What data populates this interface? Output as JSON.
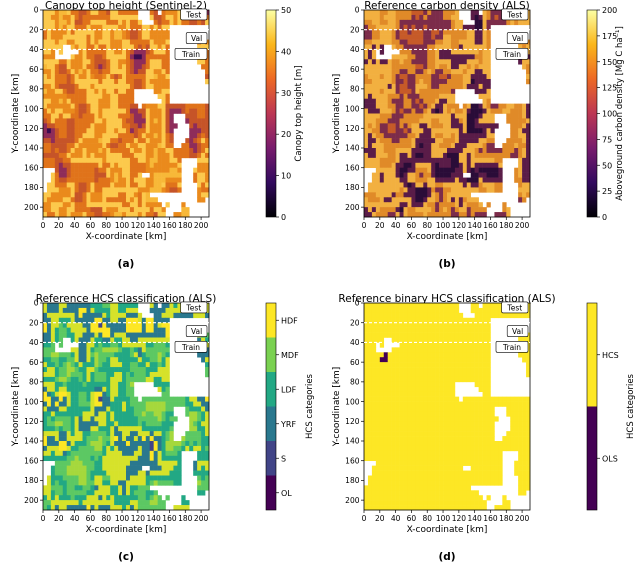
{
  "chart_data": [
    {
      "type": "heatmap",
      "letter": "(a)",
      "title": "Canopy top height (Sentinel-2)",
      "xlabel": "X-coordinate [km]",
      "ylabel": "Y-coordinate [km]",
      "xlim": [
        0,
        210
      ],
      "ylim": [
        0,
        210
      ],
      "xticks": [
        0,
        20,
        40,
        60,
        80,
        100,
        120,
        140,
        160,
        180,
        200
      ],
      "yticks": [
        0,
        20,
        40,
        60,
        80,
        100,
        120,
        140,
        160,
        180,
        200
      ],
      "split_lines_y": [
        20,
        40
      ],
      "split_labels": [
        "Test",
        "Val",
        "Train"
      ],
      "colorbar": {
        "kind": "continuous",
        "label": "Canopy top height [m]",
        "range": [
          0,
          50
        ],
        "ticks": [
          0,
          10,
          20,
          30,
          40,
          50
        ],
        "colormap": "inferno",
        "stops": [
          "#000004",
          "#320a5e",
          "#781c6d",
          "#bc3754",
          "#ed6925",
          "#fbb61a",
          "#fcffa4"
        ]
      },
      "map": {
        "palette": [
          "#f4a92a",
          "#f7b838",
          "#ea8a1c",
          "#fcc94c",
          "#e0731a",
          "#c65428",
          "#8e2c5a",
          "#3c0b51"
        ],
        "nodata": "#ffffff"
      }
    },
    {
      "type": "heatmap",
      "letter": "(b)",
      "title": "Reference carbon density (ALS)",
      "xlabel": "X-coordinate [km]",
      "ylabel": "Y-coordinate [km]",
      "xlim": [
        0,
        210
      ],
      "ylim": [
        0,
        210
      ],
      "xticks": [
        0,
        20,
        40,
        60,
        80,
        100,
        120,
        140,
        160,
        180,
        200
      ],
      "yticks": [
        0,
        20,
        40,
        60,
        80,
        100,
        120,
        140,
        160,
        180,
        200
      ],
      "split_lines_y": [
        20,
        40
      ],
      "split_labels": [
        "Test",
        "Val",
        "Train"
      ],
      "colorbar": {
        "kind": "continuous",
        "label": "Aboveground carbon density [Mg C ha⁻¹]",
        "range": [
          0,
          200
        ],
        "ticks": [
          0,
          25,
          50,
          75,
          100,
          125,
          150,
          175,
          200
        ],
        "colormap": "inferno",
        "stops": [
          "#000004",
          "#320a5e",
          "#781c6d",
          "#bc3754",
          "#ed6925",
          "#fbb61a",
          "#fcffa4"
        ]
      },
      "map": {
        "palette": [
          "#a0402e",
          "#c65a28",
          "#7c2c4a",
          "#e08a28",
          "#f2b040",
          "#5a1c48",
          "#2a0c38",
          "#b84a30"
        ],
        "nodata": "#ffffff"
      }
    },
    {
      "type": "heatmap",
      "letter": "(c)",
      "title": "Reference HCS classification (ALS)",
      "xlabel": "X-coordinate [km]",
      "ylabel": "Y-coordinate [km]",
      "xlim": [
        0,
        210
      ],
      "ylim": [
        0,
        210
      ],
      "xticks": [
        0,
        20,
        40,
        60,
        80,
        100,
        120,
        140,
        160,
        180,
        200
      ],
      "yticks": [
        0,
        20,
        40,
        60,
        80,
        100,
        120,
        140,
        160,
        180,
        200
      ],
      "split_lines_y": [
        20,
        40
      ],
      "split_labels": [
        "Test",
        "Val",
        "Train"
      ],
      "colorbar": {
        "kind": "categorical",
        "label": "HCS categories",
        "categories": [
          "OL",
          "S",
          "YRF",
          "LDF",
          "MDF",
          "HDF"
        ],
        "colors": [
          "#440154",
          "#414487",
          "#2a788e",
          "#22a884",
          "#7ad151",
          "#fde725"
        ]
      },
      "map": {
        "palette": [
          "#7ad151",
          "#a5d83c",
          "#5cc863",
          "#22a884",
          "#d6e22a",
          "#2a788e",
          "#fde725",
          "#414487"
        ],
        "nodata": "#ffffff"
      }
    },
    {
      "type": "heatmap",
      "letter": "(d)",
      "title": "Reference binary HCS classification (ALS)",
      "xlabel": "X-coordinate [km]",
      "ylabel": "Y-coordinate [km]",
      "xlim": [
        0,
        210
      ],
      "ylim": [
        0,
        210
      ],
      "xticks": [
        0,
        20,
        40,
        60,
        80,
        100,
        120,
        140,
        160,
        180,
        200
      ],
      "yticks": [
        0,
        20,
        40,
        60,
        80,
        100,
        120,
        140,
        160,
        180,
        200
      ],
      "split_lines_y": [
        20,
        40
      ],
      "split_labels": [
        "Test",
        "Val",
        "Train"
      ],
      "colorbar": {
        "kind": "categorical",
        "label": "HCS categories",
        "categories": [
          "OLS",
          "HCS"
        ],
        "colors": [
          "#440154",
          "#fde725"
        ]
      },
      "map": {
        "palette": [
          "#fde725",
          "#fde725",
          "#fde725",
          "#fde725",
          "#fde725",
          "#fde725",
          "#fde725",
          "#440154"
        ],
        "nodata": "#ffffff"
      }
    }
  ]
}
